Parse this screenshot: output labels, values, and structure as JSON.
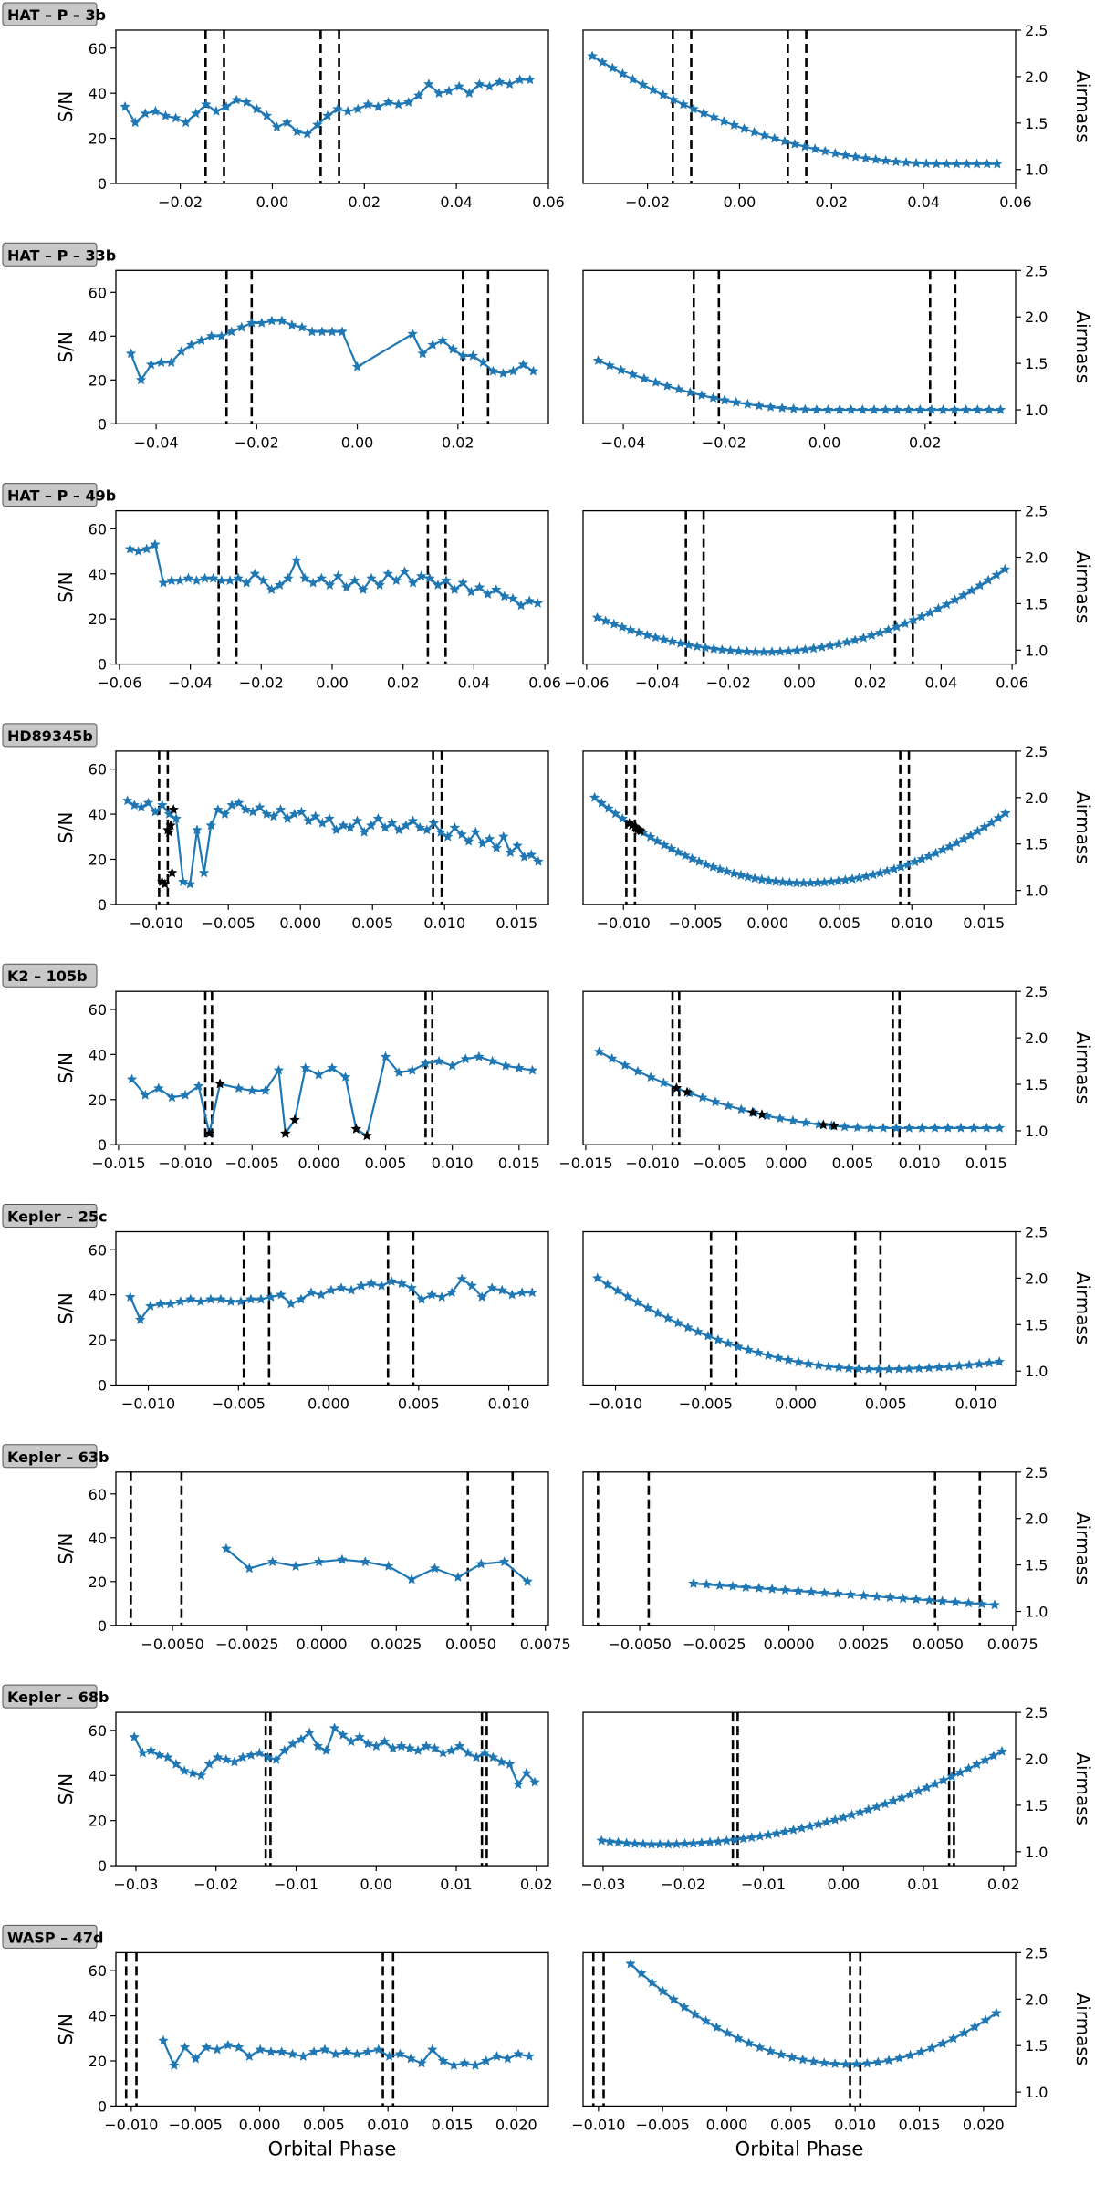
{
  "figure": {
    "sn_label": "S/N",
    "airmass_label": "Airmass",
    "xlabel": "Orbital Phase",
    "colors": {
      "series": "#1f77b4",
      "highlight": "#000000",
      "window": "#000000",
      "badge_bg": "#c8c8c8"
    }
  },
  "chart_data": [
    {
      "name": "HAT – P – 3b",
      "type": "line",
      "xlim": [
        -0.034,
        0.06
      ],
      "xticks": [
        -0.02,
        0.0,
        0.02,
        0.04,
        0.06
      ],
      "xticklabels": [
        "−0.02",
        "0.00",
        "0.02",
        "0.04",
        "0.06"
      ],
      "sn_ylim": [
        0,
        68
      ],
      "sn_yticks": [
        0,
        20,
        40,
        60
      ],
      "am_ylim": [
        0.85,
        2.5
      ],
      "am_yticks": [
        1.0,
        1.5,
        2.0,
        2.5
      ],
      "am_yticklabels": [
        "1.0",
        "1.5",
        "2.0",
        "2.5"
      ],
      "windows": [
        -0.0145,
        -0.0105,
        0.0105,
        0.0145
      ],
      "phase_range": [
        -0.032,
        0.056
      ],
      "sn": [
        34,
        27,
        31,
        32,
        30,
        29,
        27,
        31,
        35,
        32,
        34,
        37,
        36,
        33,
        30,
        25,
        27,
        23,
        22,
        26,
        30,
        33,
        32,
        33,
        35,
        34,
        36,
        35,
        36,
        39,
        44,
        40,
        41,
        43,
        40,
        44,
        43,
        45,
        44,
        46,
        46
      ],
      "am": {
        "type": "curve",
        "a": 2.22,
        "v": 1.06,
        "x0": 0.045
      },
      "highlight": []
    },
    {
      "name": "HAT – P – 33b",
      "type": "line",
      "xlim": [
        -0.048,
        0.038
      ],
      "xticks": [
        -0.04,
        -0.02,
        0.0,
        0.02
      ],
      "xticklabels": [
        "−0.04",
        "−0.02",
        "0.00",
        "0.02"
      ],
      "sn_ylim": [
        0,
        70
      ],
      "sn_yticks": [
        0,
        20,
        40,
        60
      ],
      "am_ylim": [
        0.85,
        2.5
      ],
      "am_yticks": [
        1.0,
        1.5,
        2.0,
        2.5
      ],
      "am_yticklabels": [
        "1.0",
        "1.5",
        "2.0",
        "2.5"
      ],
      "windows": [
        -0.026,
        -0.021,
        0.021,
        0.026
      ],
      "phase_range": [
        -0.045,
        0.035
      ],
      "sn": [
        [
          -0.045,
          32
        ],
        [
          -0.043,
          20
        ],
        [
          -0.041,
          27
        ],
        [
          -0.039,
          28
        ],
        [
          -0.037,
          28
        ],
        [
          -0.035,
          33
        ],
        [
          -0.033,
          36
        ],
        [
          -0.031,
          38
        ],
        [
          -0.029,
          40
        ],
        [
          -0.027,
          40
        ],
        [
          -0.025,
          42
        ],
        [
          -0.023,
          44
        ],
        [
          -0.021,
          46
        ],
        [
          -0.019,
          46
        ],
        [
          -0.017,
          47
        ],
        [
          -0.015,
          47
        ],
        [
          -0.013,
          45
        ],
        [
          -0.011,
          44
        ],
        [
          -0.009,
          42
        ],
        [
          -0.007,
          42
        ],
        [
          -0.005,
          42
        ],
        [
          -0.003,
          42
        ],
        [
          0.0,
          26
        ],
        [
          0.011,
          41
        ],
        [
          0.013,
          32
        ],
        [
          0.015,
          36
        ],
        [
          0.017,
          38
        ],
        [
          0.019,
          34
        ],
        [
          0.021,
          31
        ],
        [
          0.023,
          31
        ],
        [
          0.025,
          28
        ],
        [
          0.027,
          24
        ],
        [
          0.029,
          23
        ],
        [
          0.031,
          24
        ],
        [
          0.033,
          27
        ],
        [
          0.035,
          24
        ]
      ],
      "am": {
        "type": "curve",
        "a": 1.53,
        "v": 1.0,
        "x0": 0.0
      },
      "highlight": []
    },
    {
      "name": "HAT – P – 49b",
      "type": "line",
      "xlim": [
        -0.061,
        0.061
      ],
      "xticks": [
        -0.06,
        -0.04,
        -0.02,
        0.0,
        0.02,
        0.04,
        0.06
      ],
      "xticklabels": [
        "−0.06",
        "−0.04",
        "−0.02",
        "0.00",
        "0.02",
        "0.04",
        "0.06"
      ],
      "sn_ylim": [
        0,
        68
      ],
      "sn_yticks": [
        0,
        20,
        40,
        60
      ],
      "am_ylim": [
        0.85,
        2.5
      ],
      "am_yticks": [
        1.0,
        1.5,
        2.0,
        2.5
      ],
      "am_yticklabels": [
        "1.0",
        "1.5",
        "2.0",
        "2.5"
      ],
      "windows": [
        -0.032,
        -0.027,
        0.027,
        0.032
      ],
      "phase_range": [
        -0.057,
        0.058
      ],
      "sn": [
        51,
        50,
        51,
        53,
        36,
        37,
        37,
        38,
        37,
        38,
        38,
        37,
        37,
        38,
        36,
        40,
        37,
        33,
        35,
        38,
        46,
        38,
        36,
        38,
        35,
        39,
        34,
        37,
        33,
        38,
        35,
        40,
        37,
        41,
        36,
        39,
        38,
        35,
        37,
        33,
        36,
        32,
        34,
        31,
        33,
        30,
        29,
        26,
        28,
        27
      ],
      "am": {
        "type": "curve",
        "a": 1.35,
        "v": 0.98,
        "x0": -0.01,
        "b": 1.87
      },
      "highlight": []
    },
    {
      "name": "HD89345b",
      "type": "line",
      "xlim": [
        -0.0128,
        0.0172
      ],
      "xticks": [
        -0.01,
        -0.005,
        0.0,
        0.005,
        0.01,
        0.015
      ],
      "xticklabels": [
        "−0.010",
        "−0.005",
        "0.000",
        "0.005",
        "0.010",
        "0.015"
      ],
      "sn_ylim": [
        0,
        68
      ],
      "sn_yticks": [
        0,
        20,
        40,
        60
      ],
      "am_ylim": [
        0.85,
        2.5
      ],
      "am_yticks": [
        1.0,
        1.5,
        2.0,
        2.5
      ],
      "am_yticklabels": [
        "1.0",
        "1.5",
        "2.0",
        "2.5"
      ],
      "windows": [
        -0.0098,
        -0.0092,
        0.0092,
        0.0098
      ],
      "phase_range": [
        -0.012,
        0.0165
      ],
      "sn": [
        46,
        44,
        43,
        45,
        41,
        44,
        40,
        38,
        10,
        9,
        33,
        14,
        35,
        42,
        40,
        44,
        45,
        42,
        41,
        43,
        40,
        39,
        42,
        38,
        40,
        41,
        37,
        39,
        36,
        38,
        33,
        35,
        34,
        37,
        32,
        35,
        38,
        34,
        36,
        33,
        35,
        37,
        34,
        33,
        36,
        32,
        30,
        34,
        31,
        28,
        32,
        27,
        29,
        25,
        30,
        23,
        26,
        21,
        22,
        19
      ],
      "am": {
        "type": "curve",
        "a": 2.0,
        "v": 1.08,
        "x0": 0.0025,
        "b": 1.83
      },
      "highlight": [
        [
          -0.0096,
          10
        ],
        [
          -0.0094,
          9
        ],
        [
          -0.0092,
          33
        ],
        [
          -0.0091,
          32
        ],
        [
          -0.009,
          35
        ],
        [
          -0.0089,
          14
        ],
        [
          -0.0088,
          42
        ]
      ]
    },
    {
      "name": "K2 – 105b",
      "type": "line",
      "xlim": [
        -0.0152,
        0.0172
      ],
      "xticks": [
        -0.015,
        -0.01,
        -0.005,
        0.0,
        0.005,
        0.01,
        0.015
      ],
      "xticklabels": [
        "−0.015",
        "−0.010",
        "−0.005",
        "0.000",
        "0.005",
        "0.010",
        "0.015"
      ],
      "sn_ylim": [
        0,
        68
      ],
      "sn_yticks": [
        0,
        20,
        40,
        60
      ],
      "am_ylim": [
        0.85,
        2.5
      ],
      "am_yticks": [
        1.0,
        1.5,
        2.0,
        2.5
      ],
      "am_yticklabels": [
        "1.0",
        "1.5",
        "2.0",
        "2.5"
      ],
      "windows": [
        -0.0085,
        -0.008,
        0.008,
        0.0085
      ],
      "phase_range": [
        -0.014,
        0.016
      ],
      "sn": [
        [
          -0.014,
          29
        ],
        [
          -0.013,
          22
        ],
        [
          -0.012,
          25
        ],
        [
          -0.011,
          21
        ],
        [
          -0.01,
          22
        ],
        [
          -0.009,
          26
        ],
        [
          -0.0082,
          5
        ],
        [
          -0.0074,
          27
        ],
        [
          -0.006,
          25
        ],
        [
          -0.005,
          24
        ],
        [
          -0.004,
          24
        ],
        [
          -0.003,
          33
        ],
        [
          -0.0025,
          5
        ],
        [
          -0.0018,
          11
        ],
        [
          -0.001,
          34
        ],
        [
          0.0,
          31
        ],
        [
          0.001,
          34
        ],
        [
          0.002,
          30
        ],
        [
          0.0028,
          7
        ],
        [
          0.0036,
          4
        ],
        [
          0.005,
          39
        ],
        [
          0.006,
          32
        ],
        [
          0.007,
          33
        ],
        [
          0.008,
          36
        ],
        [
          0.009,
          37
        ],
        [
          0.01,
          35
        ],
        [
          0.011,
          38
        ],
        [
          0.012,
          39
        ],
        [
          0.013,
          37
        ],
        [
          0.014,
          35
        ],
        [
          0.015,
          34
        ],
        [
          0.016,
          33
        ]
      ],
      "am": {
        "type": "curve",
        "a": 1.85,
        "v": 1.03,
        "x0": 0.007
      },
      "highlight": [
        [
          -0.0082,
          5
        ],
        [
          -0.0074,
          27
        ],
        [
          -0.0025,
          5
        ],
        [
          -0.0018,
          11
        ],
        [
          0.0028,
          7
        ],
        [
          0.0036,
          4
        ]
      ]
    },
    {
      "name": "Kepler – 25c",
      "type": "line",
      "xlim": [
        -0.0118,
        0.0122
      ],
      "xticks": [
        -0.01,
        -0.005,
        0.0,
        0.005,
        0.01
      ],
      "xticklabels": [
        "−0.010",
        "−0.005",
        "0.000",
        "0.005",
        "0.010"
      ],
      "sn_ylim": [
        0,
        68
      ],
      "sn_yticks": [
        0,
        20,
        40,
        60
      ],
      "am_ylim": [
        0.85,
        2.5
      ],
      "am_yticks": [
        1.0,
        1.5,
        2.0,
        2.5
      ],
      "am_yticklabels": [
        "1.0",
        "1.5",
        "2.0",
        "2.5"
      ],
      "windows": [
        -0.0047,
        -0.0033,
        0.0033,
        0.0047
      ],
      "phase_range": [
        -0.011,
        0.0113
      ],
      "sn": [
        39,
        29,
        35,
        36,
        36,
        37,
        38,
        37,
        38,
        38,
        37,
        37,
        38,
        38,
        39,
        40,
        36,
        38,
        41,
        40,
        42,
        43,
        42,
        44,
        45,
        44,
        46,
        45,
        43,
        38,
        40,
        39,
        41,
        47,
        44,
        39,
        43,
        42,
        40,
        41,
        41
      ],
      "am": {
        "type": "curve",
        "a": 2.0,
        "v": 1.02,
        "x0": 0.0045,
        "b": 1.1
      },
      "highlight": []
    },
    {
      "name": "Kepler – 63b",
      "type": "line",
      "xlim": [
        -0.0069,
        0.0076
      ],
      "xticks": [
        -0.005,
        -0.0025,
        0.0,
        0.0025,
        0.005,
        0.0075
      ],
      "xticklabels": [
        "−0.0050",
        "−0.0025",
        "0.0000",
        "0.0025",
        "0.0050",
        "0.0075"
      ],
      "sn_ylim": [
        0,
        70
      ],
      "sn_yticks": [
        0,
        20,
        40,
        60
      ],
      "am_ylim": [
        0.85,
        2.5
      ],
      "am_yticks": [
        1.0,
        1.5,
        2.0,
        2.5
      ],
      "am_yticklabels": [
        "1.0",
        "1.5",
        "2.0",
        "2.5"
      ],
      "windows": [
        -0.0064,
        -0.0047,
        0.0049,
        0.0064
      ],
      "phase_range": [
        -0.0032,
        0.0069
      ],
      "sn": [
        35,
        26,
        29,
        27,
        29,
        30,
        29,
        27,
        21,
        26,
        22,
        28,
        29,
        20
      ],
      "am": {
        "type": "linear",
        "y0": 1.3,
        "y1": 1.07
      },
      "highlight": []
    },
    {
      "name": "Kepler – 68b",
      "type": "line",
      "xlim": [
        -0.0325,
        0.0215
      ],
      "xticks": [
        -0.03,
        -0.02,
        -0.01,
        0.0,
        0.01,
        0.02
      ],
      "xticklabels": [
        "−0.03",
        "−0.02",
        "−0.01",
        "0.00",
        "0.01",
        "0.02"
      ],
      "sn_ylim": [
        0,
        68
      ],
      "sn_yticks": [
        0,
        20,
        40,
        60
      ],
      "am_ylim": [
        0.85,
        2.5
      ],
      "am_yticks": [
        1.0,
        1.5,
        2.0,
        2.5
      ],
      "am_yticklabels": [
        "1.0",
        "1.5",
        "2.0",
        "2.5"
      ],
      "windows": [
        -0.0138,
        -0.0132,
        0.0132,
        0.0138
      ],
      "phase_range": [
        -0.0302,
        0.0198
      ],
      "sn": [
        57,
        50,
        51,
        49,
        48,
        45,
        42,
        41,
        40,
        45,
        48,
        47,
        46,
        48,
        49,
        50,
        48,
        47,
        51,
        54,
        56,
        59,
        53,
        51,
        61,
        58,
        55,
        57,
        54,
        53,
        55,
        52,
        53,
        52,
        51,
        53,
        52,
        50,
        51,
        53,
        50,
        48,
        50,
        48,
        46,
        45,
        36,
        41,
        37
      ],
      "am": {
        "type": "curve",
        "a": 1.12,
        "v": 1.08,
        "x0": -0.023,
        "b": 2.08
      },
      "highlight": []
    },
    {
      "name": "WASP – 47d",
      "type": "line",
      "xlim": [
        -0.0112,
        0.0225
      ],
      "xticks": [
        -0.01,
        -0.005,
        0.0,
        0.005,
        0.01,
        0.015,
        0.02
      ],
      "xticklabels": [
        "−0.010",
        "−0.005",
        "0.000",
        "0.005",
        "0.010",
        "0.015",
        "0.020"
      ],
      "sn_ylim": [
        0,
        68
      ],
      "sn_yticks": [
        0,
        20,
        40,
        60
      ],
      "am_ylim": [
        0.85,
        2.5
      ],
      "am_yticks": [
        1.0,
        1.5,
        2.0,
        2.5
      ],
      "am_yticklabels": [
        "1.0",
        "1.5",
        "2.0",
        "2.5"
      ],
      "windows": [
        -0.0104,
        -0.0096,
        0.0096,
        0.0104
      ],
      "phase_range": [
        -0.0075,
        0.021
      ],
      "sn": [
        29,
        18,
        26,
        21,
        26,
        25,
        27,
        26,
        22,
        25,
        24,
        24,
        23,
        22,
        24,
        25,
        23,
        24,
        23,
        24,
        25,
        22,
        23,
        21,
        19,
        25,
        20,
        18,
        19,
        18,
        20,
        22,
        21,
        23,
        22
      ],
      "am": {
        "type": "curve",
        "a": 2.38,
        "v": 1.3,
        "x0": 0.0095,
        "b": 1.85
      },
      "highlight": []
    }
  ]
}
